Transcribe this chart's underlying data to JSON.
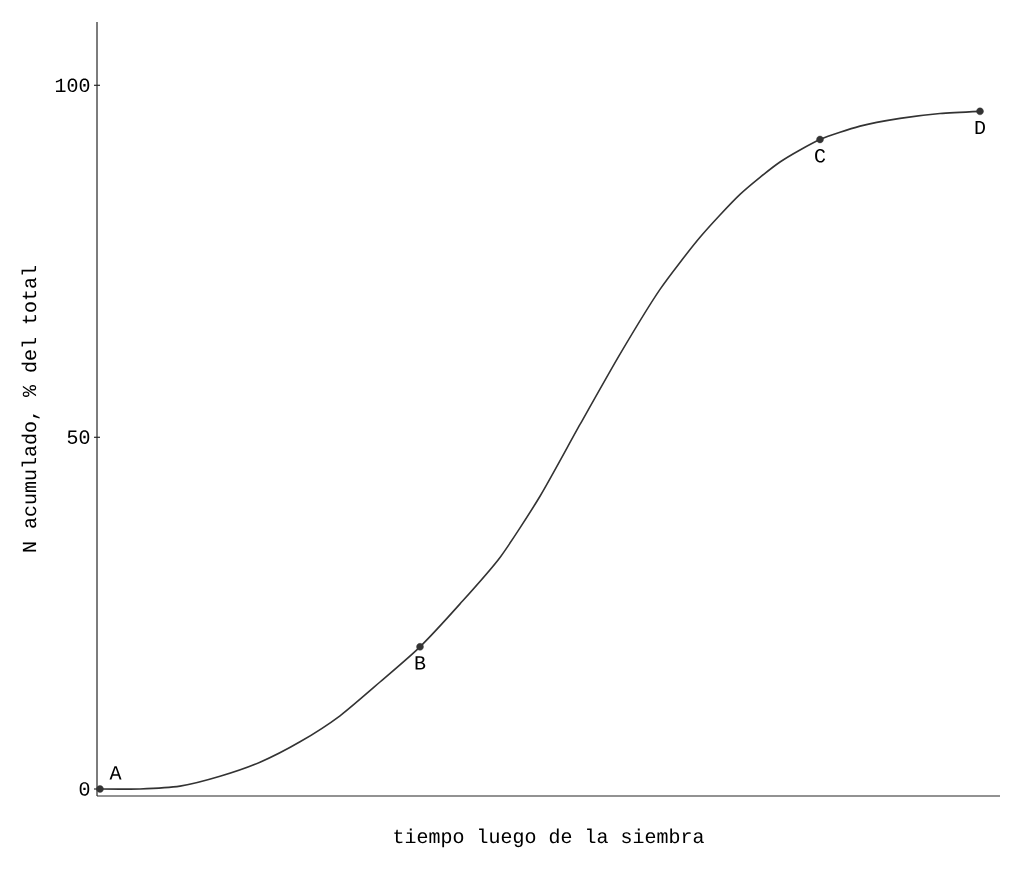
{
  "chart_data": {
    "type": "line",
    "xlabel": "tiempo luego de la siembra",
    "ylabel": "N acumulado, % del total",
    "categories": [
      null,
      null,
      null,
      null,
      null,
      null,
      null,
      null,
      null,
      null,
      null,
      null,
      null,
      null,
      null,
      null,
      null,
      null,
      null,
      null,
      null,
      null,
      null
    ],
    "series": [
      {
        "color": "#333333",
        "marker": "none",
        "values": [
          0,
          0,
          0.4,
          1.8,
          3.8,
          6.7,
          10.4,
          15.2,
          20.2,
          26.3,
          32.9,
          41.6,
          51.8,
          61.8,
          71.0,
          78.4,
          84.5,
          89.1,
          92.3,
          94.2,
          95.3,
          96.0,
          96.3
        ]
      },
      {
        "type": "scatter",
        "color": "#333333",
        "marker": "circle",
        "values": [
          0,
          null,
          null,
          null,
          null,
          null,
          null,
          null,
          20.2,
          null,
          null,
          null,
          null,
          null,
          null,
          null,
          null,
          null,
          92.3,
          null,
          null,
          null,
          96.3
        ],
        "value_labels": [
          "A",
          null,
          null,
          null,
          null,
          null,
          null,
          null,
          "B",
          null,
          null,
          null,
          null,
          null,
          null,
          null,
          null,
          null,
          "C",
          null,
          null,
          null,
          "D"
        ]
      }
    ],
    "ylim": [
      -1,
      109
    ],
    "yticks": [
      0,
      50,
      100
    ]
  }
}
